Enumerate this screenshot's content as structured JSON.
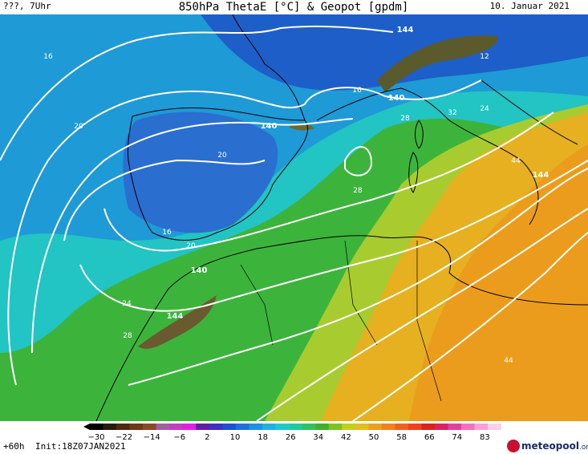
{
  "header": {
    "left": "???, 7Uhr",
    "title": "850hPa ThetaE [°C] & Geopot [gpdm]",
    "date": "10. Januar 2021"
  },
  "contour_labels": [
    "144",
    "140",
    "140",
    "140",
    "144",
    "144",
    "16",
    "16",
    "16",
    "20",
    "20",
    "20",
    "24",
    "24",
    "28",
    "28",
    "28",
    "32",
    "12",
    "44",
    "44"
  ],
  "colorbar": {
    "labels": [
      "−30",
      "−22",
      "−14",
      "−6",
      "2",
      "10",
      "18",
      "26",
      "34",
      "42",
      "50",
      "58",
      "66",
      "74",
      "83"
    ]
  },
  "footer": {
    "run": "+60h",
    "init": "Init:18Z07JAN2021",
    "logo": "meteopool",
    "logo_suffix": ".org"
  }
}
